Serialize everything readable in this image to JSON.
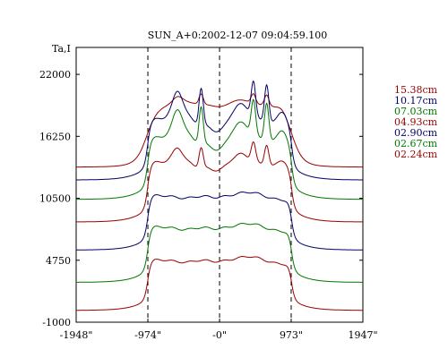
{
  "chart_data": {
    "type": "line",
    "title": "SUN_A+0:2002-12-07 09:04:59.100",
    "ylabel": "Ta,I",
    "xlabel": "",
    "x_tick_labels": [
      "-1948\"",
      "-974\"",
      "-0\"",
      "973\"",
      "1947\""
    ],
    "x_tick_values": [
      -1948,
      -974,
      0,
      973,
      1947
    ],
    "y_tick_labels": [
      "22000",
      "16250",
      "10500",
      "4750",
      "-1000"
    ],
    "y_tick_values": [
      22000,
      16250,
      10500,
      4750,
      -1000
    ],
    "xlim": [
      -1948,
      1947
    ],
    "ylim": [
      -1000,
      24500
    ],
    "reference_lines_x": [
      -974,
      0,
      973
    ],
    "grid": false,
    "legend_position": "right",
    "series": [
      {
        "name": "15.38cm",
        "color": "#990000",
        "base": 13400,
        "disk": 19400,
        "type": "smooth"
      },
      {
        "name": "10.17cm",
        "color": "#000066",
        "base": 12200,
        "disk": 18200,
        "type": "active"
      },
      {
        "name": "07.03cm",
        "color": "#007700",
        "base": 10400,
        "disk": 16500,
        "type": "active"
      },
      {
        "name": "04.93cm",
        "color": "#990000",
        "base": 8300,
        "disk": 14200,
        "type": "active_small"
      },
      {
        "name": "02.90cm",
        "color": "#000066",
        "base": 5700,
        "disk": 11100,
        "type": "flat"
      },
      {
        "name": "02.67cm",
        "color": "#007700",
        "base": 2700,
        "disk": 8200,
        "type": "flat"
      },
      {
        "name": "02.24cm",
        "color": "#990000",
        "base": 100,
        "disk": 5100,
        "type": "flat"
      }
    ]
  }
}
